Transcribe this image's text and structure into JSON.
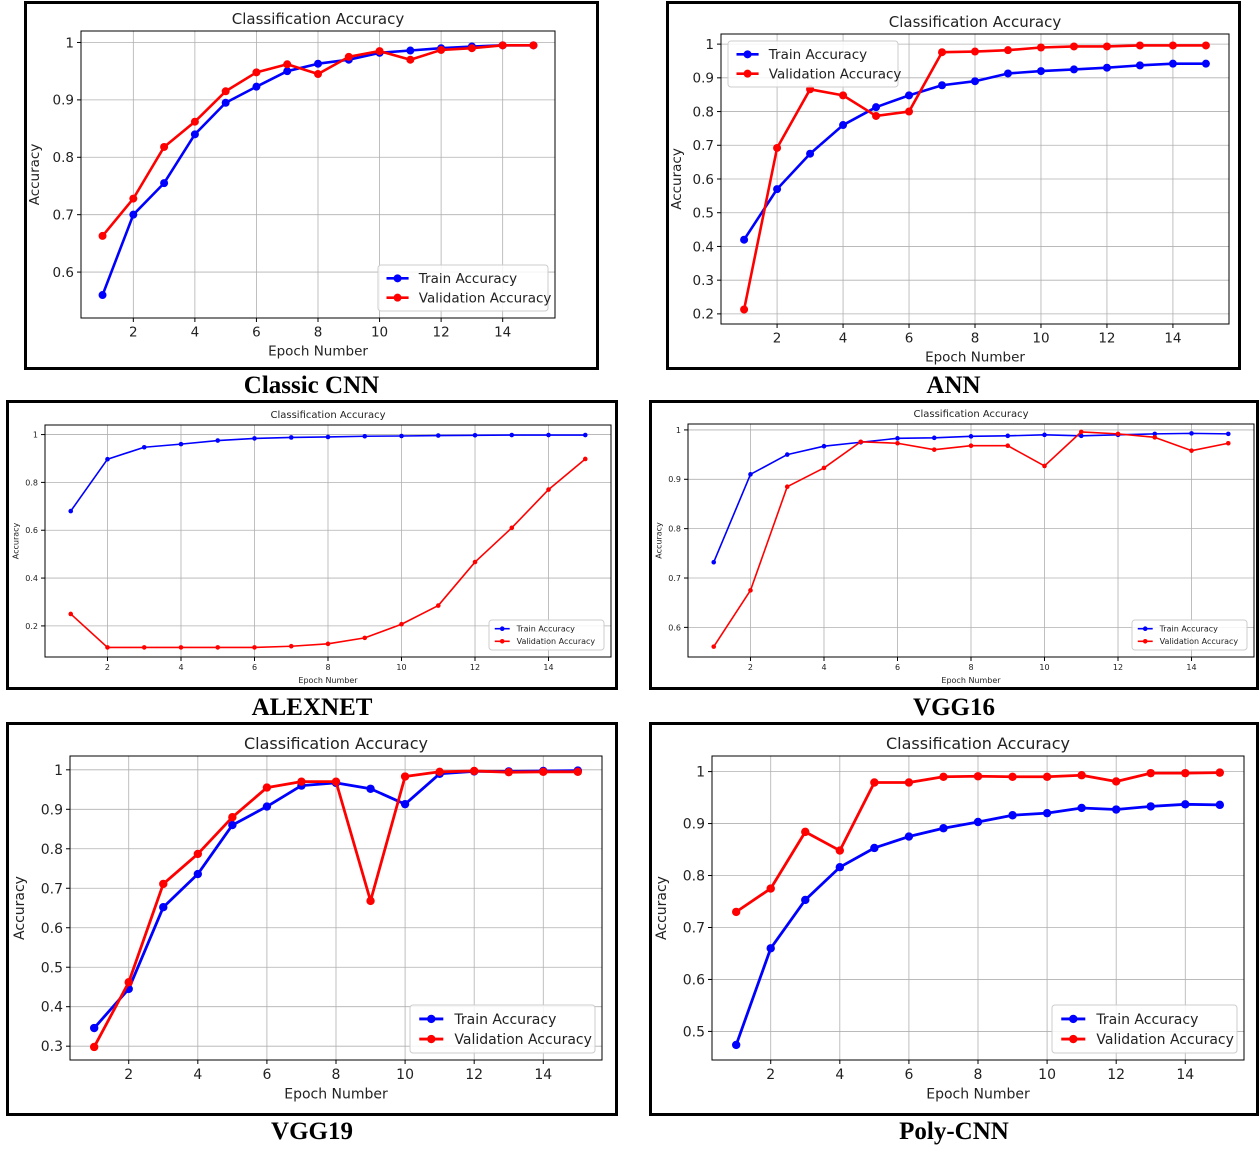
{
  "colors": {
    "train": "#0000ff",
    "validation": "#ff0000",
    "grid": "#b0b0b0"
  },
  "chart_data": [
    {
      "type": "line",
      "caption": "Classic CNN",
      "title": "Classification Accuracy",
      "xlabel": "Epoch Number",
      "ylabel": "Accuracy",
      "xlim": [
        0.3,
        15.7
      ],
      "ylim": [
        0.52,
        1.02
      ],
      "xticks": [
        2,
        4,
        6,
        8,
        10,
        12,
        14
      ],
      "yticks": [
        0.6,
        0.7,
        0.8,
        0.9,
        1.0
      ],
      "legend_position": "lower-right",
      "grid": true,
      "x": [
        1,
        2,
        3,
        4,
        5,
        6,
        7,
        8,
        9,
        10,
        11,
        12,
        13,
        14,
        15
      ],
      "series": [
        {
          "name": "Train Accuracy",
          "color": "#0000ff",
          "values": [
            0.56,
            0.7,
            0.755,
            0.84,
            0.895,
            0.923,
            0.95,
            0.963,
            0.97,
            0.982,
            0.986,
            0.99,
            0.993,
            0.995,
            0.995
          ]
        },
        {
          "name": "Validation Accuracy",
          "color": "#ff0000",
          "values": [
            0.663,
            0.728,
            0.818,
            0.862,
            0.915,
            0.948,
            0.962,
            0.945,
            0.975,
            0.985,
            0.97,
            0.987,
            0.99,
            0.995,
            0.995
          ]
        }
      ]
    },
    {
      "type": "line",
      "caption": "ANN",
      "title": "Classification Accuracy",
      "xlabel": "Epoch Number",
      "ylabel": "Accuracy",
      "xlim": [
        0.3,
        15.7
      ],
      "ylim": [
        0.17,
        1.03
      ],
      "xticks": [
        2,
        4,
        6,
        8,
        10,
        12,
        14
      ],
      "yticks": [
        0.2,
        0.3,
        0.4,
        0.5,
        0.6,
        0.7,
        0.8,
        0.9,
        1.0
      ],
      "legend_position": "upper-left",
      "grid": true,
      "x": [
        1,
        2,
        3,
        4,
        5,
        6,
        7,
        8,
        9,
        10,
        11,
        12,
        13,
        14,
        15
      ],
      "series": [
        {
          "name": "Train Accuracy",
          "color": "#0000ff",
          "values": [
            0.42,
            0.57,
            0.675,
            0.76,
            0.813,
            0.848,
            0.878,
            0.89,
            0.913,
            0.92,
            0.925,
            0.93,
            0.937,
            0.942,
            0.942
          ]
        },
        {
          "name": "Validation Accuracy",
          "color": "#ff0000",
          "values": [
            0.213,
            0.692,
            0.866,
            0.848,
            0.787,
            0.8,
            0.976,
            0.978,
            0.982,
            0.99,
            0.993,
            0.993,
            0.996,
            0.996,
            0.996
          ]
        }
      ]
    },
    {
      "type": "line",
      "caption": "ALEXNET",
      "title": "Classification Accuracy",
      "xlabel": "Epoch Number",
      "ylabel": "Accuracy",
      "xlim": [
        0.3,
        15.7
      ],
      "ylim": [
        0.07,
        1.04
      ],
      "xticks": [
        2,
        4,
        6,
        8,
        10,
        12,
        14
      ],
      "yticks": [
        0.2,
        0.4,
        0.6,
        0.8,
        1.0
      ],
      "legend_position": "lower-right",
      "grid": true,
      "x": [
        1,
        2,
        3,
        4,
        5,
        6,
        7,
        8,
        9,
        10,
        11,
        12,
        13,
        14,
        15
      ],
      "series": [
        {
          "name": "Train Accuracy",
          "color": "#0000ff",
          "values": [
            0.68,
            0.897,
            0.947,
            0.96,
            0.975,
            0.984,
            0.988,
            0.99,
            0.993,
            0.994,
            0.996,
            0.997,
            0.998,
            0.998,
            0.998
          ]
        },
        {
          "name": "Validation Accuracy",
          "color": "#ff0000",
          "values": [
            0.25,
            0.11,
            0.11,
            0.11,
            0.11,
            0.11,
            0.115,
            0.125,
            0.15,
            0.207,
            0.285,
            0.467,
            0.61,
            0.77,
            0.898
          ]
        }
      ]
    },
    {
      "type": "line",
      "caption": "VGG16",
      "title": "Classification Accuracy",
      "xlabel": "Epoch Number",
      "ylabel": "Accuracy",
      "xlim": [
        0.3,
        15.7
      ],
      "ylim": [
        0.54,
        1.012
      ],
      "xticks": [
        2,
        4,
        6,
        8,
        10,
        12,
        14
      ],
      "yticks": [
        0.6,
        0.7,
        0.8,
        0.9,
        1.0
      ],
      "legend_position": "lower-right",
      "grid": true,
      "x": [
        1,
        2,
        3,
        4,
        5,
        6,
        7,
        8,
        9,
        10,
        11,
        12,
        13,
        14,
        15
      ],
      "series": [
        {
          "name": "Train Accuracy",
          "color": "#0000ff",
          "values": [
            0.732,
            0.91,
            0.95,
            0.967,
            0.975,
            0.983,
            0.984,
            0.987,
            0.988,
            0.99,
            0.988,
            0.99,
            0.992,
            0.993,
            0.992
          ]
        },
        {
          "name": "Validation Accuracy",
          "color": "#ff0000",
          "values": [
            0.561,
            0.675,
            0.885,
            0.923,
            0.976,
            0.973,
            0.96,
            0.968,
            0.968,
            0.927,
            0.996,
            0.992,
            0.985,
            0.958,
            0.973
          ]
        }
      ]
    },
    {
      "type": "line",
      "caption": "VGG19",
      "title": "Classification Accuracy",
      "xlabel": "Epoch Number",
      "ylabel": "Accuracy",
      "xlim": [
        0.3,
        15.7
      ],
      "ylim": [
        0.265,
        1.035
      ],
      "xticks": [
        2,
        4,
        6,
        8,
        10,
        12,
        14
      ],
      "yticks": [
        0.3,
        0.4,
        0.5,
        0.6,
        0.7,
        0.8,
        0.9,
        1.0
      ],
      "legend_position": "lower-right",
      "grid": true,
      "x": [
        1,
        2,
        3,
        4,
        5,
        6,
        7,
        8,
        9,
        10,
        11,
        12,
        13,
        14,
        15
      ],
      "series": [
        {
          "name": "Train Accuracy",
          "color": "#0000ff",
          "values": [
            0.346,
            0.445,
            0.652,
            0.736,
            0.86,
            0.907,
            0.96,
            0.967,
            0.952,
            0.913,
            0.99,
            0.996,
            0.996,
            0.997,
            0.998
          ]
        },
        {
          "name": "Validation Accuracy",
          "color": "#ff0000",
          "values": [
            0.298,
            0.462,
            0.711,
            0.787,
            0.88,
            0.955,
            0.97,
            0.97,
            0.668,
            0.983,
            0.995,
            0.997,
            0.994,
            0.995,
            0.995
          ]
        }
      ]
    },
    {
      "type": "line",
      "caption": "Poly-CNN",
      "title": "Classification Accuracy",
      "xlabel": "Epoch Number",
      "ylabel": "Accuracy",
      "xlim": [
        0.3,
        15.7
      ],
      "ylim": [
        0.445,
        1.03
      ],
      "xticks": [
        2,
        4,
        6,
        8,
        10,
        12,
        14
      ],
      "yticks": [
        0.5,
        0.6,
        0.7,
        0.8,
        0.9,
        1.0
      ],
      "legend_position": "lower-right",
      "grid": true,
      "x": [
        1,
        2,
        3,
        4,
        5,
        6,
        7,
        8,
        9,
        10,
        11,
        12,
        13,
        14,
        15
      ],
      "series": [
        {
          "name": "Train Accuracy",
          "color": "#0000ff",
          "values": [
            0.474,
            0.66,
            0.753,
            0.816,
            0.853,
            0.875,
            0.891,
            0.903,
            0.916,
            0.92,
            0.93,
            0.927,
            0.933,
            0.937,
            0.936
          ]
        },
        {
          "name": "Validation Accuracy",
          "color": "#ff0000",
          "values": [
            0.73,
            0.775,
            0.884,
            0.848,
            0.979,
            0.979,
            0.99,
            0.991,
            0.99,
            0.99,
            0.993,
            0.981,
            0.997,
            0.997,
            0.998
          ]
        }
      ]
    }
  ]
}
